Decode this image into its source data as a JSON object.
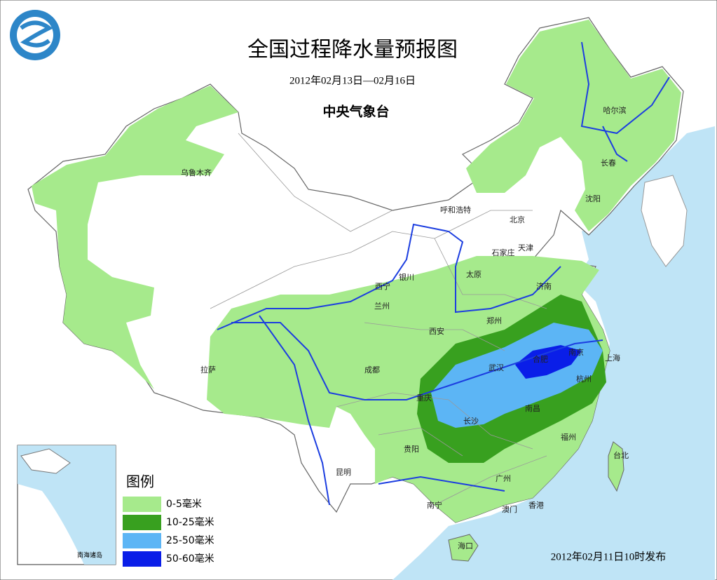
{
  "header": {
    "title": "全国过程降水量预报图",
    "date_range": "2012年02月13日—02月16日",
    "issuer": "中央气象台"
  },
  "cities": [
    "乌鲁木齐",
    "哈尔滨",
    "长春",
    "沈阳",
    "呼和浩特",
    "北京",
    "天津",
    "石家庄",
    "太原",
    "济南",
    "西宁",
    "银川",
    "兰州",
    "郑州",
    "西安",
    "拉萨",
    "成都",
    "武汉",
    "合肥",
    "南京",
    "上海",
    "杭州",
    "重庆",
    "长沙",
    "南昌",
    "福州",
    "台北",
    "贵阳",
    "昆明",
    "广州",
    "南宁",
    "澳门",
    "香港",
    "海口"
  ],
  "legend": {
    "title": "图例",
    "items": [
      {
        "label": "0-5毫米",
        "color": "#a6ea8c"
      },
      {
        "label": "10-25毫米",
        "color": "#38a01f"
      },
      {
        "label": "25-50毫米",
        "color": "#5cb5f5"
      },
      {
        "label": "50-60毫米",
        "color": "#0a1ee8"
      }
    ]
  },
  "inset": {
    "label": "南海诸岛"
  },
  "footer": {
    "issued": "2012年02月11日10时发布"
  }
}
